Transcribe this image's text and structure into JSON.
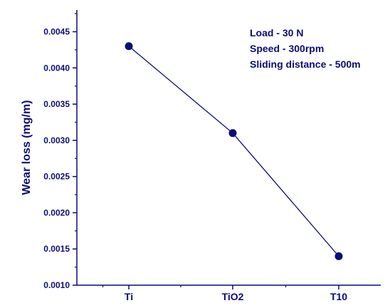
{
  "chart_data": {
    "type": "line",
    "categories": [
      "Ti",
      "TiO2",
      "T10"
    ],
    "series": [
      {
        "values": [
          0.0043,
          0.0031,
          0.0014
        ]
      }
    ],
    "xlabel": "",
    "ylabel": "Wear loss (mg/m)",
    "ylim": [
      0.001,
      0.0048
    ],
    "yticks": [
      "0.0010",
      "0.0015",
      "0.0020",
      "0.0025",
      "0.0030",
      "0.0035",
      "0.0040",
      "0.0045"
    ],
    "annotations": [
      "Load - 30 N",
      "Speed - 300rpm",
      "Sliding distance - 500m"
    ],
    "grid": false,
    "colors": {
      "axis": "#0b0b7a",
      "line": "#0b0b7a",
      "marker": "#0b0b7a",
      "text": "#0b0b7a"
    }
  }
}
